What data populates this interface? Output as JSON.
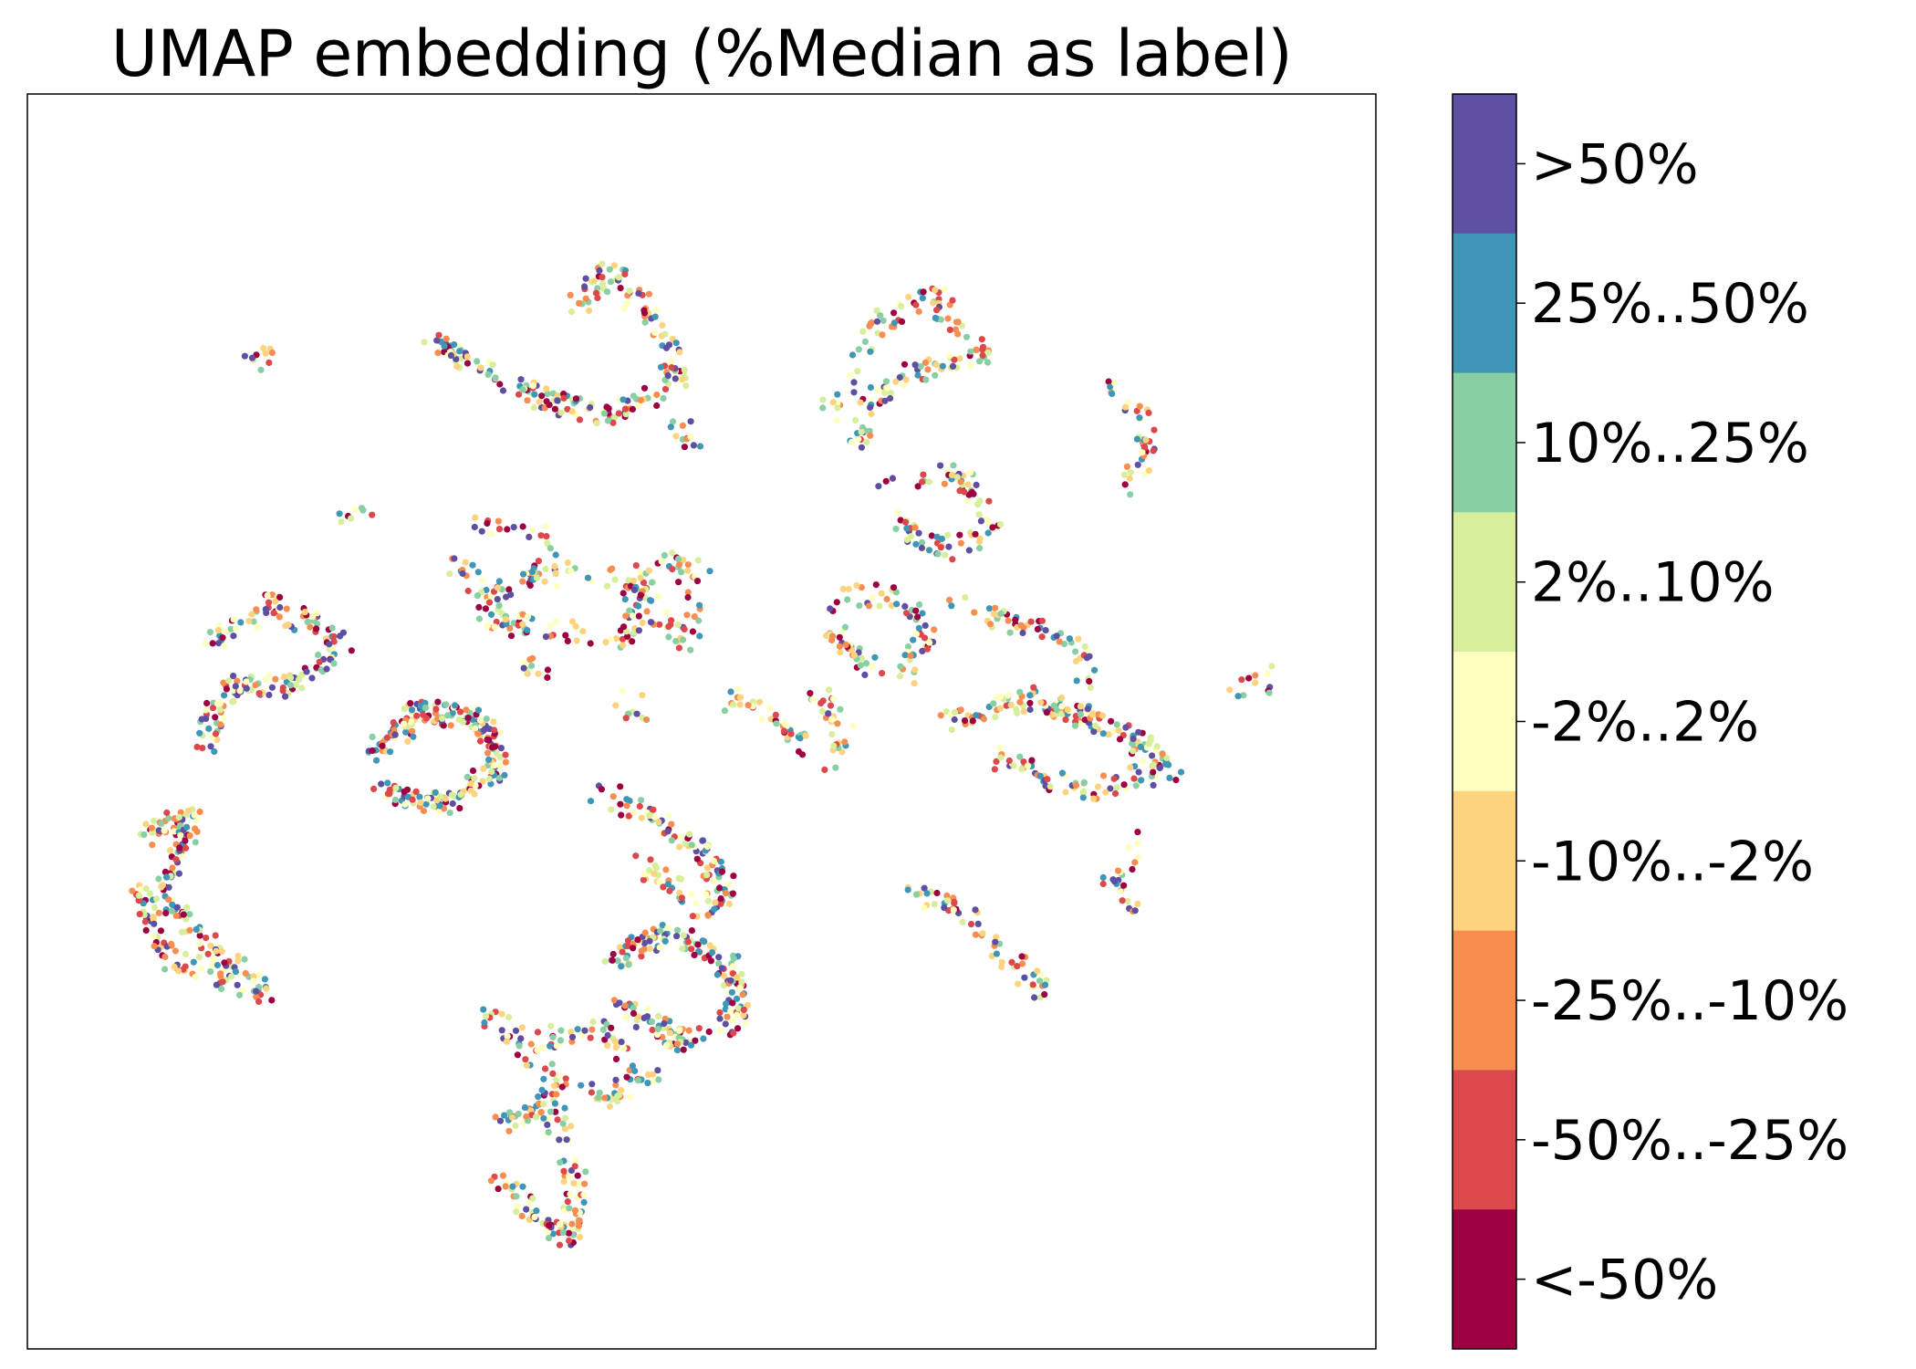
{
  "chart_data": {
    "type": "scatter",
    "title": "UMAP embedding (%Median as label)",
    "xlabel": "",
    "ylabel": "",
    "ticks_visible": false,
    "legend": "colorbar-right",
    "colorbar": {
      "categories": [
        ">50%",
        "25%..50%",
        "10%..25%",
        "2%..10%",
        "-2%..2%",
        "-10%..-2%",
        "-25%..-10%",
        "-50%..-25%",
        "<-50%"
      ],
      "colors": [
        "#5e4fa2",
        "#3f96b7",
        "#88cfa4",
        "#d7ef9b",
        "#ffffbf",
        "#fdd380",
        "#f88d52",
        "#dc484c",
        "#9e0142"
      ]
    },
    "clusters_description": "points in the UMAP embedding plane; coordinates in arbitrary units 0-1000 (x) and 0-1000 (y, top=0)",
    "clusters": [
      {
        "path": [
          [
            400,
            150
          ],
          [
            430,
            120
          ],
          [
            470,
            170
          ],
          [
            480,
            210
          ],
          [
            430,
            240
          ],
          [
            380,
            230
          ],
          [
            330,
            200
          ],
          [
            290,
            180
          ]
        ],
        "n": 220
      },
      {
        "path": [
          [
            600,
            240
          ],
          [
            640,
            160
          ],
          [
            680,
            140
          ],
          [
            720,
            190
          ],
          [
            680,
            200
          ],
          [
            640,
            220
          ],
          [
            620,
            270
          ]
        ],
        "n": 140
      },
      {
        "path": [
          [
            820,
            210
          ],
          [
            850,
            250
          ],
          [
            840,
            300
          ]
        ],
        "n": 40
      },
      {
        "path": [
          [
            320,
            330
          ],
          [
            370,
            340
          ],
          [
            380,
            380
          ],
          [
            330,
            390
          ],
          [
            300,
            360
          ]
        ],
        "n": 50
      },
      {
        "path": [
          [
            320,
            400
          ],
          [
            380,
            370
          ],
          [
            450,
            380
          ],
          [
            440,
            430
          ],
          [
            360,
            420
          ],
          [
            330,
            410
          ]
        ],
        "n": 110
      },
      {
        "path": [
          [
            630,
            300
          ],
          [
            700,
            290
          ],
          [
            730,
            330
          ],
          [
            700,
            360
          ],
          [
            650,
            330
          ]
        ],
        "n": 90
      },
      {
        "path": [
          [
            600,
            400
          ],
          [
            640,
            390
          ],
          [
            680,
            420
          ],
          [
            660,
            460
          ],
          [
            620,
            450
          ],
          [
            600,
            420
          ]
        ],
        "n": 90
      },
      {
        "path": [
          [
            700,
            400
          ],
          [
            760,
            420
          ],
          [
            800,
            440
          ],
          [
            800,
            500
          ]
        ],
        "n": 60
      },
      {
        "path": [
          [
            110,
            440
          ],
          [
            160,
            400
          ],
          [
            220,
            430
          ],
          [
            180,
            470
          ],
          [
            130,
            470
          ],
          [
            110,
            520
          ]
        ],
        "n": 170
      },
      {
        "path": [
          [
            470,
            360
          ],
          [
            500,
            380
          ],
          [
            490,
            440
          ],
          [
            460,
            410
          ],
          [
            450,
            370
          ]
        ],
        "n": 70
      },
      {
        "path": [
          [
            240,
            530
          ],
          [
            280,
            490
          ],
          [
            330,
            500
          ],
          [
            340,
            540
          ],
          [
            300,
            570
          ],
          [
            250,
            560
          ]
        ],
        "n": 230
      },
      {
        "path": [
          [
            690,
            500
          ],
          [
            760,
            480
          ],
          [
            830,
            510
          ],
          [
            870,
            540
          ],
          [
            800,
            560
          ],
          [
            730,
            530
          ]
        ],
        "n": 210
      },
      {
        "path": [
          [
            420,
            560
          ],
          [
            460,
            580
          ],
          [
            500,
            610
          ],
          [
            520,
            640
          ],
          [
            500,
            660
          ],
          [
            450,
            620
          ]
        ],
        "n": 130
      },
      {
        "path": [
          [
            430,
            700
          ],
          [
            470,
            680
          ],
          [
            520,
            700
          ],
          [
            530,
            750
          ],
          [
            480,
            770
          ],
          [
            440,
            740
          ]
        ],
        "n": 200
      },
      {
        "path": [
          [
            320,
            750
          ],
          [
            370,
            770
          ],
          [
            420,
            760
          ],
          [
            460,
            800
          ],
          [
            420,
            820
          ],
          [
            360,
            790
          ]
        ],
        "n": 110
      },
      {
        "path": [
          [
            340,
            840
          ],
          [
            380,
            820
          ],
          [
            400,
            880
          ],
          [
            400,
            940
          ],
          [
            370,
            920
          ],
          [
            340,
            880
          ]
        ],
        "n": 140
      },
      {
        "path": [
          [
            60,
            600
          ],
          [
            100,
            580
          ],
          [
            80,
            640
          ],
          [
            110,
            690
          ],
          [
            160,
            730
          ],
          [
            80,
            700
          ],
          [
            60,
            640
          ]
        ],
        "n": 220
      },
      {
        "path": [
          [
            660,
            640
          ],
          [
            700,
            660
          ],
          [
            740,
            700
          ],
          [
            770,
            730
          ]
        ],
        "n": 60
      },
      {
        "path": [
          [
            520,
            480
          ],
          [
            560,
            500
          ],
          [
            580,
            520
          ]
        ],
        "n": 35
      },
      {
        "path": [
          [
            590,
            470
          ],
          [
            610,
            510
          ],
          [
            600,
            540
          ]
        ],
        "n": 30
      },
      {
        "path": [
          [
            840,
            600
          ],
          [
            830,
            640
          ],
          [
            840,
            660
          ],
          [
            820,
            640
          ]
        ],
        "n": 25
      },
      {
        "path": [
          [
            920,
            470
          ],
          [
            940,
            470
          ],
          [
            950,
            450
          ]
        ],
        "n": 12
      },
      {
        "path": [
          [
            160,
            170
          ],
          [
            150,
            200
          ]
        ],
        "n": 10
      },
      {
        "path": [
          [
            480,
            250
          ],
          [
            500,
            270
          ]
        ],
        "n": 12
      },
      {
        "path": [
          [
            350,
            450
          ],
          [
            380,
            460
          ]
        ],
        "n": 10
      },
      {
        "path": [
          [
            440,
            480
          ],
          [
            460,
            500
          ]
        ],
        "n": 10
      },
      {
        "path": [
          [
            220,
            330
          ],
          [
            240,
            320
          ]
        ],
        "n": 8
      }
    ]
  }
}
